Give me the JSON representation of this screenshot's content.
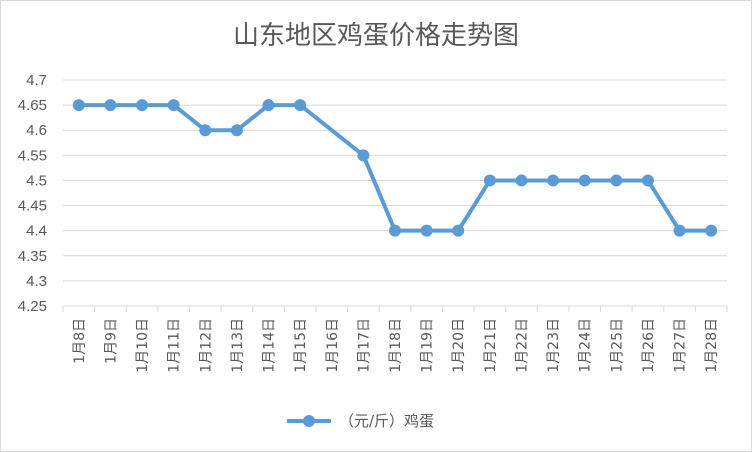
{
  "chart_data": {
    "type": "line",
    "title": "山东地区鸡蛋价格走势图",
    "xlabel": "",
    "ylabel": "",
    "categories": [
      "1月8日",
      "1月9日",
      "1月10日",
      "1月11日",
      "1月12日",
      "1月13日",
      "1月14日",
      "1月15日",
      "1月16日",
      "1月17日",
      "1月18日",
      "1月19日",
      "1月20日",
      "1月21日",
      "1月22日",
      "1月23日",
      "1月24日",
      "1月25日",
      "1月26日",
      "1月27日",
      "1月28日"
    ],
    "ylim": [
      4.25,
      4.7
    ],
    "yticks": [
      "4.7",
      "4.65",
      "4.6",
      "4.55",
      "4.5",
      "4.45",
      "4.4",
      "4.35",
      "4.3",
      "4.25"
    ],
    "grid": true,
    "legend_position": "bottom",
    "series": [
      {
        "name": "（元/斤）鸡蛋",
        "color": "#5B9BD5",
        "points": [
          {
            "x": "1月8日",
            "y": 4.65
          },
          {
            "x": "1月9日",
            "y": 4.65
          },
          {
            "x": "1月10日",
            "y": 4.65
          },
          {
            "x": "1月11日",
            "y": 4.65
          },
          {
            "x": "1月12日",
            "y": 4.6
          },
          {
            "x": "1月13日",
            "y": 4.6
          },
          {
            "x": "1月14日",
            "y": 4.65
          },
          {
            "x": "1月15日",
            "y": 4.65
          },
          {
            "x": "1月17日",
            "y": 4.55
          },
          {
            "x": "1月18日",
            "y": 4.4
          },
          {
            "x": "1月19日",
            "y": 4.4
          },
          {
            "x": "1月20日",
            "y": 4.4
          },
          {
            "x": "1月21日",
            "y": 4.5
          },
          {
            "x": "1月22日",
            "y": 4.5
          },
          {
            "x": "1月23日",
            "y": 4.5
          },
          {
            "x": "1月24日",
            "y": 4.5
          },
          {
            "x": "1月25日",
            "y": 4.5
          },
          {
            "x": "1月26日",
            "y": 4.5
          },
          {
            "x": "1月27日",
            "y": 4.4
          },
          {
            "x": "1月28日",
            "y": 4.4
          }
        ]
      }
    ]
  }
}
